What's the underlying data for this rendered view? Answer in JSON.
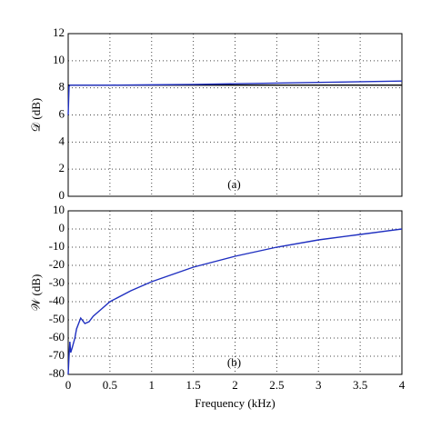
{
  "chart_data": [
    {
      "type": "line",
      "ylabel": "𝒟 (dB)",
      "annotation": "(a)",
      "xlim": [
        0,
        4
      ],
      "xticks": [
        0,
        0.5,
        1,
        1.5,
        2,
        2.5,
        3,
        3.5,
        4
      ],
      "ylim": [
        0,
        12
      ],
      "yticks": [
        0,
        2,
        4,
        6,
        8,
        10,
        12
      ],
      "grid": true,
      "series": [
        {
          "color": "#000000",
          "x": [
            0,
            4
          ],
          "values": [
            8.2,
            8.2
          ]
        },
        {
          "color": "#1f2fc0",
          "x": [
            0,
            0.01,
            0.02,
            0.05,
            0.5,
            1,
            1.5,
            2,
            2.5,
            3,
            3.5,
            4
          ],
          "values": [
            6,
            8.1,
            8.2,
            8.2,
            8.2,
            8.22,
            8.25,
            8.3,
            8.35,
            8.4,
            8.45,
            8.5
          ]
        }
      ]
    },
    {
      "type": "line",
      "ylabel": "𝒲 (dB)",
      "xlabel": "Frequency (kHz)",
      "annotation": "(b)",
      "xlim": [
        0,
        4
      ],
      "xticks": [
        0,
        0.5,
        1,
        1.5,
        2,
        2.5,
        3,
        3.5,
        4
      ],
      "ylim": [
        -80,
        10
      ],
      "yticks": [
        -80,
        -70,
        -60,
        -50,
        -40,
        -30,
        -20,
        -10,
        0,
        10
      ],
      "grid": true,
      "series": [
        {
          "color": "#1f2fc0",
          "x": [
            0,
            0.01,
            0.02,
            0.03,
            0.05,
            0.08,
            0.1,
            0.15,
            0.2,
            0.25,
            0.3,
            0.4,
            0.5,
            0.75,
            1,
            1.5,
            2,
            2.5,
            3,
            3.5,
            4
          ],
          "values": [
            -80,
            -70,
            -62,
            -68,
            -65,
            -60,
            -55,
            -49,
            -52,
            -51,
            -48,
            -44,
            -40,
            -34,
            -29,
            -21,
            -15,
            -10,
            -6,
            -3,
            0
          ]
        }
      ]
    }
  ]
}
